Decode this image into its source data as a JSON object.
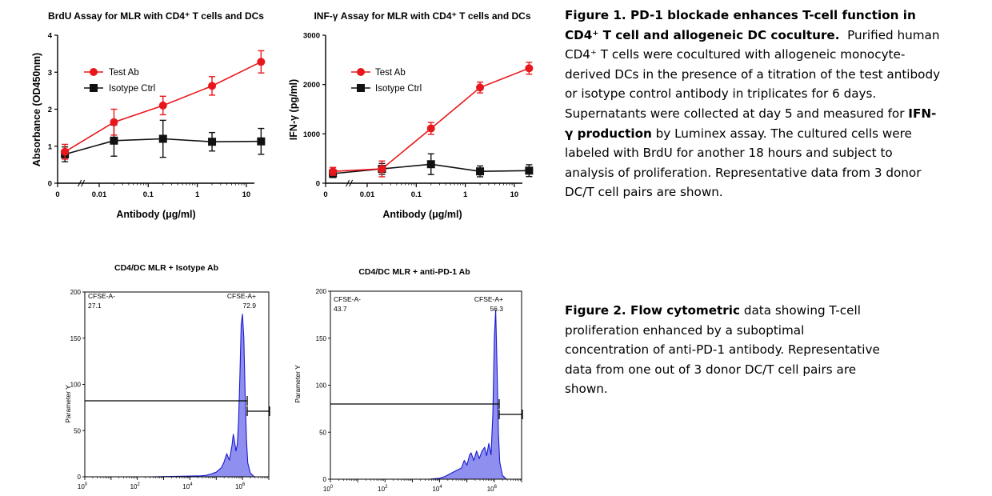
{
  "captions": {
    "figure1": {
      "label": "Figure 1. PD-1 blockade enhances T-cell function in CD4⁺ T cell and allogeneic DC coculture.",
      "text_before": "Purified human CD4⁺ T cells were cocultured with allogeneic monocyte-derived DCs in the presence of a titration of the test antibody or isotype control antibody in triplicates for 6 days. Supernatants were collected at day 5 and measured for",
      "bold_mid": "IFN-γ production",
      "text_after": "by Luminex assay. The cultured cells were labeled with BrdU for another 18 hours and subject to analysis of proliferation. Representative data from 3 donor DC/T cell pairs are shown."
    },
    "figure2": {
      "label": "Figure 2. Flow cytometric",
      "text": "data showing T-cell proliferation enhanced by a suboptimal concentration of anti-PD-1 antibody. Representative data from one out of 3 donor DC/T cell pairs are shown."
    }
  },
  "chart_data": [
    {
      "id": "brdu",
      "type": "line",
      "title": "BrdU Assay for MLR with CD4⁺ T cells and DCs",
      "xlabel": "Antibody (μg/ml)",
      "ylabel": "Absorbance (OD450nm)",
      "x_scale": "log (with 0)",
      "x_ticks": [
        "0",
        "0.01",
        "0.1",
        "1",
        "10"
      ],
      "x": [
        0.002,
        0.02,
        0.2,
        2,
        20
      ],
      "ylim": [
        0,
        4
      ],
      "y_ticks": [
        "0",
        "1",
        "2",
        "3",
        "4"
      ],
      "legend": "top-left",
      "grid": false,
      "series": [
        {
          "name": "Test Ab",
          "color": "#e8171c",
          "marker": "circle",
          "values": [
            0.85,
            1.65,
            2.1,
            2.63,
            3.28
          ],
          "errors": [
            0.2,
            0.35,
            0.25,
            0.25,
            0.3
          ]
        },
        {
          "name": "Isotype Ctrl",
          "color": "#111111",
          "marker": "square",
          "values": [
            0.78,
            1.15,
            1.2,
            1.12,
            1.13
          ],
          "errors": [
            0.2,
            0.42,
            0.5,
            0.25,
            0.35
          ]
        }
      ]
    },
    {
      "id": "ifng",
      "type": "line",
      "title": "INF-γ Assay for MLR with CD4⁺ T cells and DCs",
      "xlabel": "Antibody (μg/ml)",
      "ylabel": "IFN-γ (pg/ml)",
      "x_scale": "log (with 0)",
      "x_ticks": [
        "0",
        "0.01",
        "0.1",
        "1",
        "10"
      ],
      "x": [
        0.002,
        0.02,
        0.2,
        2,
        20
      ],
      "ylim": [
        0,
        3000
      ],
      "y_ticks": [
        "0",
        "1000",
        "2000",
        "3000"
      ],
      "legend": "top-left",
      "grid": false,
      "series": [
        {
          "name": "Test Ab",
          "color": "#e8171c",
          "marker": "circle",
          "values": [
            240,
            290,
            1110,
            1940,
            2330
          ],
          "errors": [
            80,
            160,
            120,
            110,
            120
          ]
        },
        {
          "name": "Isotype Ctrl",
          "color": "#111111",
          "marker": "square",
          "values": [
            195,
            290,
            385,
            240,
            255
          ],
          "errors": [
            80,
            110,
            210,
            110,
            120
          ]
        }
      ]
    },
    {
      "id": "flow_iso",
      "type": "area",
      "title": "CD4/DC MLR + Isotype Ab",
      "xlabel": "",
      "ylabel": "Parameter Y",
      "x_scale": "log",
      "x_tick_exponents": [
        "0",
        "2",
        "4",
        "6"
      ],
      "ylim": [
        0,
        200
      ],
      "y_ticks": [
        "0",
        "50",
        "100",
        "150",
        "200"
      ],
      "gates": [
        {
          "name": "CFSE-A-",
          "value": "27.1"
        },
        {
          "name": "CFSE-A+",
          "value": "72.9"
        }
      ],
      "histogram": {
        "log10_x": [
          0,
          2.5,
          3.5,
          4.4,
          4.6,
          4.8,
          5.0,
          5.2,
          5.3,
          5.4,
          5.5,
          5.6,
          5.65,
          5.7,
          5.75,
          5.8,
          5.85,
          5.9,
          5.95,
          6.0,
          6.05,
          6.1,
          6.15,
          6.2,
          6.3,
          6.45,
          7
        ],
        "counts": [
          0,
          0,
          0.5,
          1,
          1.5,
          3,
          5,
          10,
          16,
          25,
          18,
          34,
          46,
          38,
          28,
          35,
          60,
          110,
          165,
          176,
          150,
          90,
          40,
          15,
          4,
          0,
          0
        ]
      }
    },
    {
      "id": "flow_pd1",
      "type": "area",
      "title": "CD4/DC MLR + anti-PD-1 Ab",
      "xlabel": "",
      "ylabel": "Parameter Y",
      "x_scale": "log",
      "x_tick_exponents": [
        "0",
        "2",
        "4",
        "6"
      ],
      "ylim": [
        0,
        200
      ],
      "y_ticks": [
        "0",
        "50",
        "100",
        "150",
        "200"
      ],
      "gates": [
        {
          "name": "CFSE-A-",
          "value": "43.7"
        },
        {
          "name": "CFSE-A+",
          "value": "56.3"
        }
      ],
      "histogram": {
        "log10_x": [
          0,
          3.6,
          4.0,
          4.2,
          4.4,
          4.6,
          4.8,
          4.9,
          5.0,
          5.1,
          5.15,
          5.25,
          5.35,
          5.45,
          5.55,
          5.65,
          5.72,
          5.8,
          5.88,
          5.95,
          6.0,
          6.05,
          6.1,
          6.15,
          6.2,
          6.3,
          6.45,
          7
        ],
        "counts": [
          0,
          0,
          1,
          3,
          6,
          9,
          12,
          20,
          15,
          26,
          28,
          20,
          30,
          22,
          30,
          34,
          25,
          38,
          26,
          70,
          150,
          180,
          120,
          50,
          18,
          4,
          0,
          0
        ]
      }
    }
  ]
}
